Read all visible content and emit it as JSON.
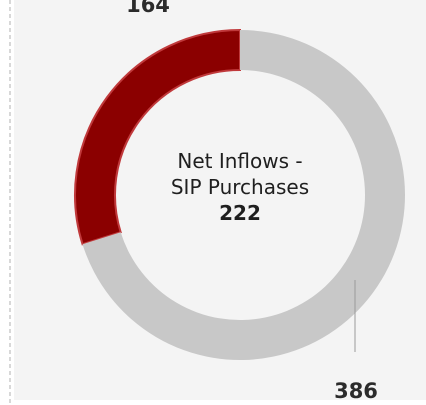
{
  "chart_data": {
    "type": "donut",
    "values": [
      164,
      386
    ],
    "colors": [
      "#8b0000",
      "#c8c8c8"
    ],
    "center_label": "Net Inflows - SIP Purchases",
    "center_value": 222
  }
}
